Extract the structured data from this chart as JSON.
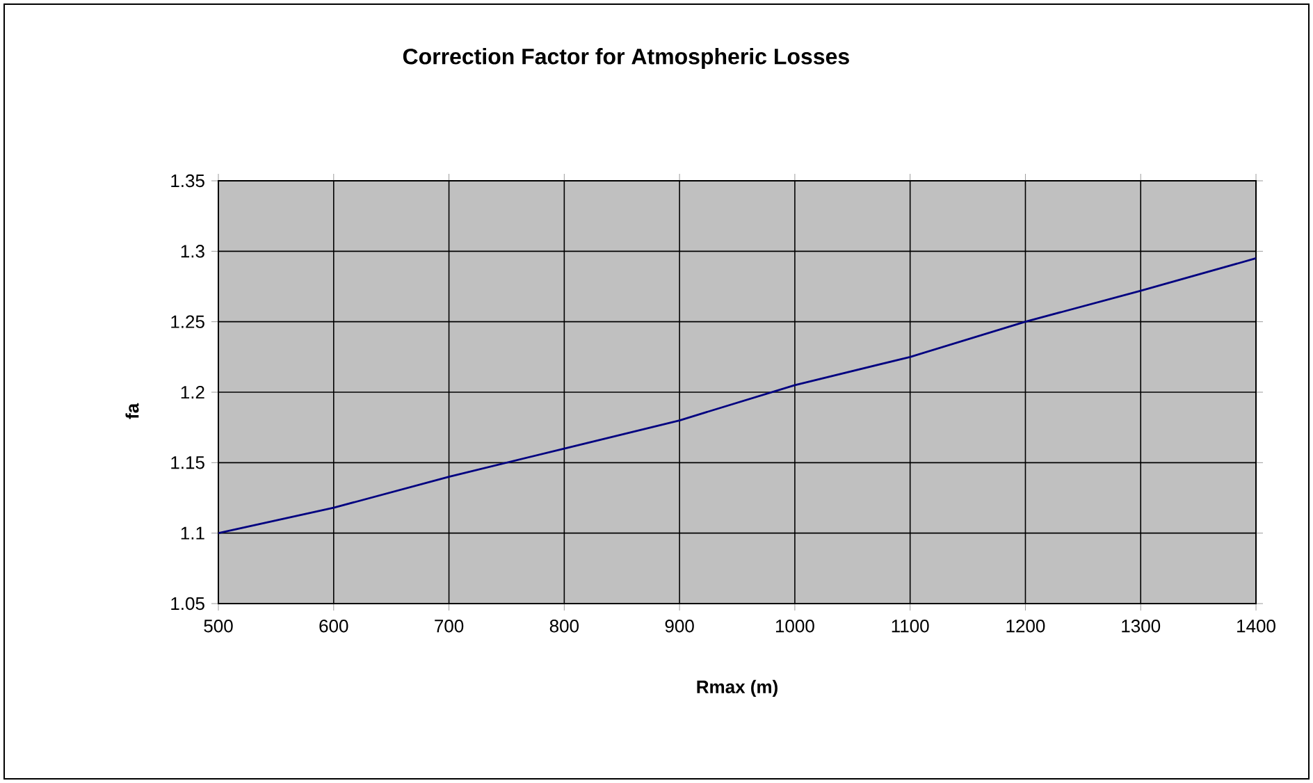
{
  "chart_data": {
    "type": "line",
    "title": "Correction Factor for Atmospheric Losses",
    "xlabel": "Rmax (m)",
    "ylabel": "fa",
    "x": [
      500,
      600,
      700,
      800,
      900,
      1000,
      1100,
      1200,
      1300,
      1400
    ],
    "series": [
      {
        "color": "#000080",
        "values": [
          1.1,
          1.118,
          1.14,
          1.16,
          1.18,
          1.205,
          1.225,
          1.25,
          1.272,
          1.295
        ]
      }
    ],
    "xlim": [
      500,
      1400
    ],
    "ylim": [
      1.05,
      1.35
    ],
    "xticks": [
      500,
      600,
      700,
      800,
      900,
      1000,
      1100,
      1200,
      1300,
      1400
    ],
    "yticks": [
      1.05,
      1.1,
      1.15,
      1.2,
      1.25,
      1.3,
      1.35
    ],
    "grid": true,
    "marker": "none",
    "line_style": "solid"
  }
}
